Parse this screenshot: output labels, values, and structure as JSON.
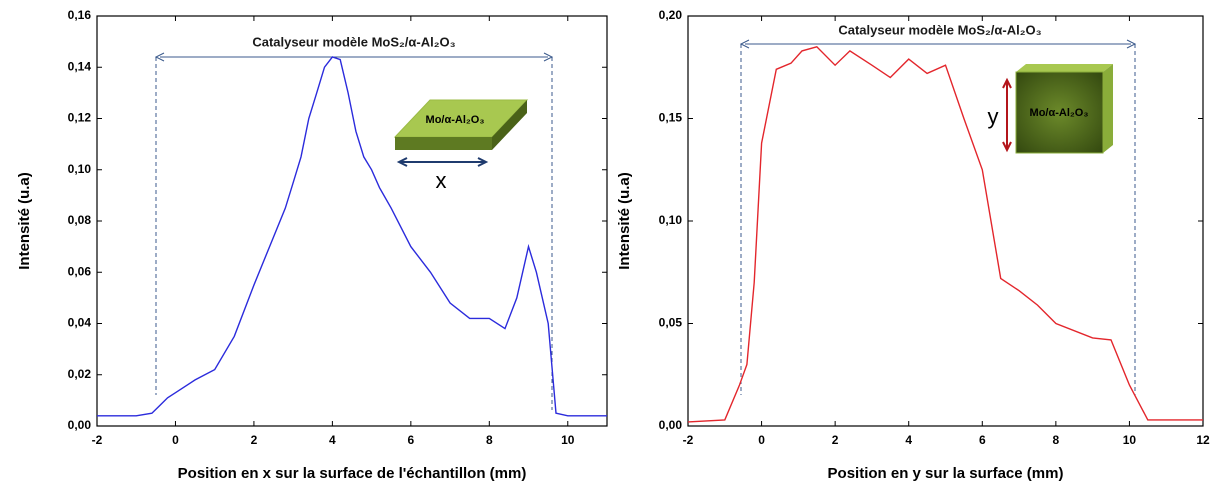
{
  "chart_data": [
    {
      "type": "line",
      "xlabel": "Position en x sur la surface de l'échantillon (mm)",
      "ylabel": "Intensité (u.a)",
      "annotation": "Catalyseur modèle MoS₂/α-Al₂O₃",
      "inset_label": "Mo/α-Al₂O₃",
      "inset_axis_label": "x",
      "color": "#2b2bdc",
      "x": [
        -2,
        -1,
        -0.6,
        -0.4,
        -0.2,
        0,
        0.5,
        1,
        1.5,
        2,
        2.4,
        2.8,
        3,
        3.2,
        3.4,
        3.6,
        3.8,
        4,
        4.2,
        4.4,
        4.6,
        4.8,
        5,
        5.2,
        5.5,
        6,
        6.5,
        7,
        7.5,
        8,
        8.4,
        8.7,
        9,
        9.2,
        9.5,
        9.7,
        10,
        11
      ],
      "values": [
        0.004,
        0.004,
        0.005,
        0.008,
        0.011,
        0.013,
        0.018,
        0.022,
        0.035,
        0.055,
        0.07,
        0.085,
        0.095,
        0.105,
        0.12,
        0.13,
        0.14,
        0.144,
        0.143,
        0.13,
        0.115,
        0.105,
        0.1,
        0.093,
        0.085,
        0.07,
        0.06,
        0.048,
        0.042,
        0.042,
        0.038,
        0.05,
        0.07,
        0.06,
        0.04,
        0.005,
        0.004,
        0.004
      ],
      "xlim": [
        -2,
        11
      ],
      "ylim": [
        0,
        0.16
      ],
      "xticks": [
        -2,
        0,
        2,
        4,
        6,
        8,
        10
      ],
      "yticks": [
        {
          "value": 0,
          "label": "0,00"
        },
        {
          "value": 0.02,
          "label": "0,02"
        },
        {
          "value": 0.04,
          "label": "0,04"
        },
        {
          "value": 0.06,
          "label": "0,06"
        },
        {
          "value": 0.08,
          "label": "0,08"
        },
        {
          "value": 0.1,
          "label": "0,10"
        },
        {
          "value": 0.12,
          "label": "0,12"
        },
        {
          "value": 0.14,
          "label": "0,14"
        },
        {
          "value": 0.16,
          "label": "0,16"
        }
      ]
    },
    {
      "type": "line",
      "xlabel": "Position en y sur la surface (mm)",
      "ylabel": "Intensité (u.a)",
      "annotation": "Catalyseur modèle MoS₂/α-Al₂O₃",
      "inset_label": "Mo/α-Al₂O₃",
      "inset_axis_label": "y",
      "color": "#e3262c",
      "x": [
        -2,
        -1,
        -0.6,
        -0.4,
        -0.2,
        0,
        0.4,
        0.8,
        1.1,
        1.5,
        2,
        2.4,
        3,
        3.5,
        4,
        4.5,
        5,
        5.5,
        6,
        6.5,
        7,
        7.5,
        8,
        9,
        9.5,
        10,
        10.5,
        12
      ],
      "values": [
        0.002,
        0.003,
        0.02,
        0.03,
        0.07,
        0.138,
        0.174,
        0.177,
        0.183,
        0.185,
        0.176,
        0.183,
        0.176,
        0.17,
        0.179,
        0.172,
        0.176,
        0.15,
        0.125,
        0.072,
        0.066,
        0.059,
        0.05,
        0.043,
        0.042,
        0.02,
        0.003,
        0.003
      ],
      "xlim": [
        -2,
        12
      ],
      "ylim": [
        0,
        0.2
      ],
      "xticks": [
        -2,
        0,
        2,
        4,
        6,
        8,
        10,
        12
      ],
      "yticks": [
        {
          "value": 0,
          "label": "0,00"
        },
        {
          "value": 0.05,
          "label": "0,05"
        },
        {
          "value": 0.1,
          "label": "0,10"
        },
        {
          "value": 0.15,
          "label": "0,15"
        },
        {
          "value": 0.2,
          "label": "0,20"
        }
      ]
    }
  ]
}
